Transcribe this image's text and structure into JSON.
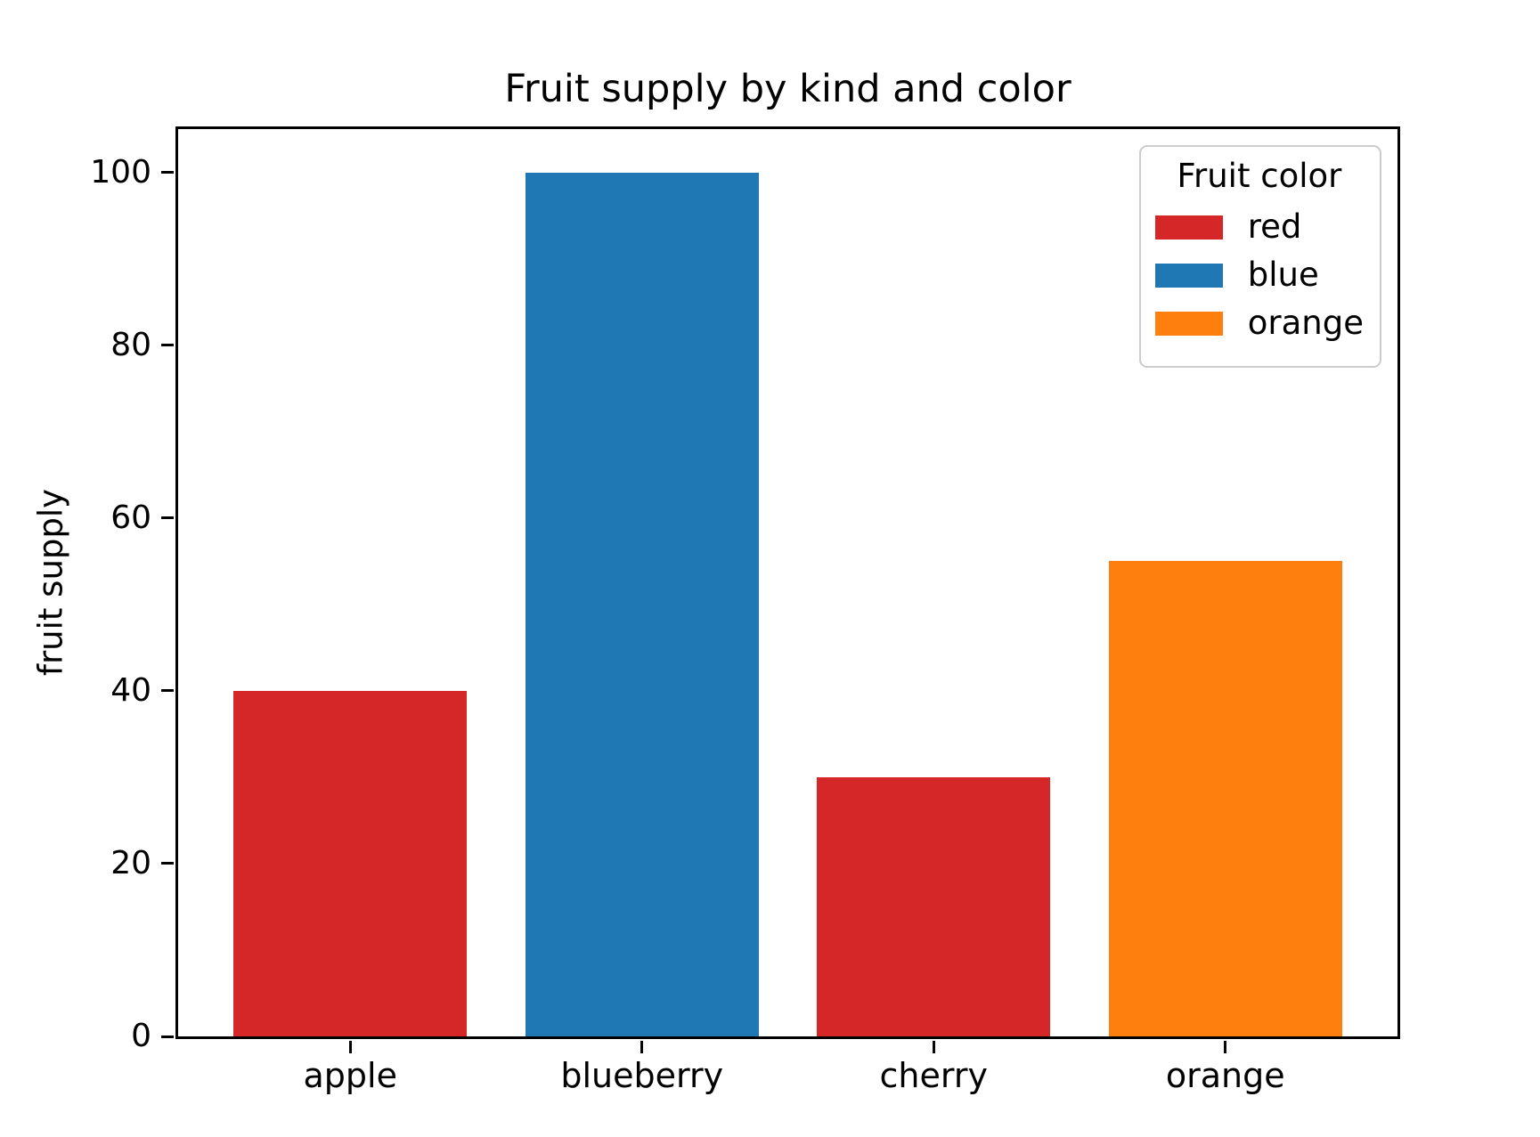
{
  "title": "Fruit supply by kind and color",
  "chart_data": {
    "type": "bar",
    "title": "Fruit supply by kind and color",
    "xlabel": "",
    "ylabel": "fruit supply",
    "categories": [
      "apple",
      "blueberry",
      "cherry",
      "orange"
    ],
    "values": [
      40,
      100,
      30,
      55
    ],
    "bar_color_names": [
      "red",
      "blue",
      "red",
      "orange"
    ],
    "bar_colors": [
      "#d62728",
      "#1f77b4",
      "#d62728",
      "#ff7f0e"
    ],
    "ylim": [
      0,
      105
    ],
    "yticks": [
      0,
      20,
      40,
      60,
      80,
      100
    ],
    "grid": false,
    "background_color": "#ffffff",
    "axis_color": "#000000",
    "legend": {
      "title": "Fruit color",
      "position": "upper right",
      "entries": [
        {
          "label": "red",
          "color": "#d62728"
        },
        {
          "label": "blue",
          "color": "#1f77b4"
        },
        {
          "label": "orange",
          "color": "#ff7f0e"
        }
      ]
    }
  }
}
